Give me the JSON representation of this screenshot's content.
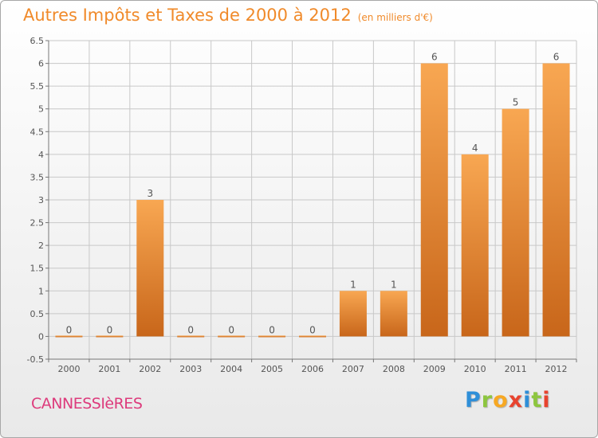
{
  "title": "Autres Impôts et Taxes de 2000 à 2012",
  "unit_note": "(en milliers d'€)",
  "commune": "CANNESSIèRES",
  "logo": {
    "letters": [
      "P",
      "r",
      "o",
      "x",
      "i",
      "t",
      "i"
    ],
    "colors": [
      "#2f8fd8",
      "#8dc63f",
      "#f7a823",
      "#e8432e",
      "#2f8fd8",
      "#8dc63f",
      "#e8432e"
    ]
  },
  "colors": {
    "title": "#f08a2a",
    "commune": "#dd3b7c",
    "bar_light": "#f8a752",
    "bar_dark": "#c8661a",
    "grid": "#c8c8c8",
    "label": "#555555"
  },
  "chart_data": {
    "type": "bar",
    "categories": [
      "2000",
      "2001",
      "2002",
      "2003",
      "2004",
      "2005",
      "2006",
      "2007",
      "2008",
      "2009",
      "2010",
      "2011",
      "2012"
    ],
    "values": [
      0,
      0,
      3,
      0,
      0,
      0,
      0,
      1,
      1,
      6,
      4,
      5,
      6
    ],
    "data_labels": [
      "0",
      "0",
      "3",
      "0",
      "0",
      "0",
      "0",
      "1",
      "1",
      "6",
      "4",
      "5",
      "6"
    ],
    "yticks": [
      -0.5,
      0,
      0.5,
      1,
      1.5,
      2,
      2.5,
      3,
      3.5,
      4,
      4.5,
      5,
      5.5,
      6,
      6.5
    ],
    "ytick_labels": [
      "-0.5",
      "0",
      "0.5",
      "1",
      "1.5",
      "2",
      "2.5",
      "3",
      "3.5",
      "4",
      "4.5",
      "5",
      "5.5",
      "6",
      "6.5"
    ],
    "ylim": [
      -0.5,
      6.5
    ],
    "title": "Autres Impôts et Taxes de 2000 à 2012",
    "xlabel": "",
    "ylabel": "",
    "grid": true
  }
}
